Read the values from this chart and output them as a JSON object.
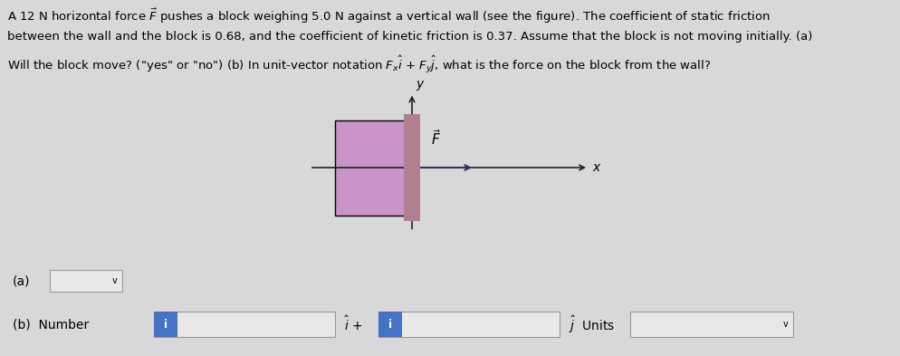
{
  "background_color": "#d8d8d8",
  "text_line1": "A 12 N horizontal force $\\vec{F}$ pushes a block weighing 5.0 N against a vertical wall (see the figure). The coefficient of static friction",
  "text_line2": "between the wall and the block is 0.68, and the coefficient of kinetic friction is 0.37. Assume that the block is not moving initially. (a)",
  "text_line3": "Will the block move? (\"yes\" or \"no\") (b) In unit-vector notation $F_x\\hat{i}$ + $F_y\\hat{j}$, what is the force on the block from the wall?",
  "text_fontsize": 9.5,
  "block_color": "#c994c7",
  "wall_color": "#b08090",
  "axis_color": "#222222",
  "arrow_color": "#333355",
  "box_facecolor": "#e8e8e8",
  "box_edgecolor": "#999999",
  "blue_color": "#4472c4",
  "white": "#ffffff",
  "black": "#000000"
}
